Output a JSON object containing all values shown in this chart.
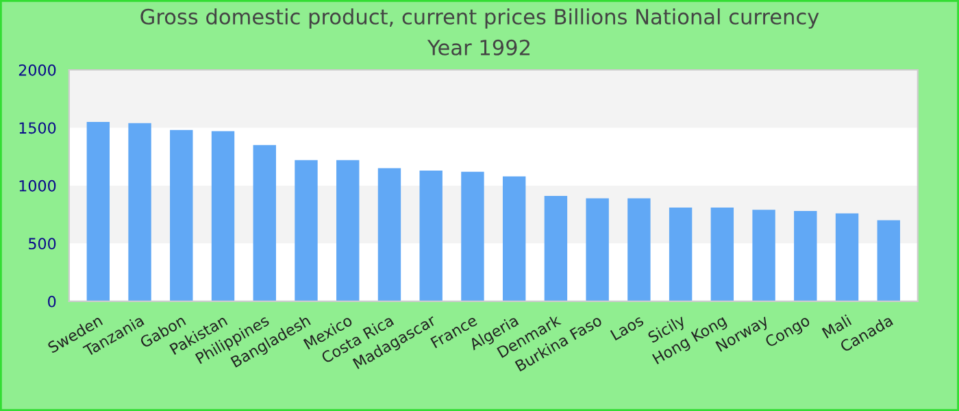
{
  "chart_data": {
    "type": "bar",
    "title": "Gross domestic product, current prices Billions National currency",
    "subtitle": "Year 1992",
    "categories": [
      "Sweden",
      "Tanzania",
      "Gabon",
      "Pakistan",
      "Philippines",
      "Bangladesh",
      "Mexico",
      "Costa Rica",
      "Madagascar",
      "France",
      "Algeria",
      "Denmark",
      "Burkina Faso",
      "Laos",
      "Sicily",
      "Hong Kong",
      "Norway",
      "Congo",
      "Mali",
      "Canada"
    ],
    "values": [
      1550,
      1540,
      1480,
      1470,
      1350,
      1220,
      1220,
      1150,
      1130,
      1120,
      1080,
      910,
      890,
      890,
      810,
      810,
      790,
      780,
      760,
      700
    ],
    "color": "#61a8f5",
    "ylim": [
      0,
      2000
    ],
    "yticks": [
      0,
      500,
      1000,
      1500,
      2000
    ],
    "bands": [
      {
        "axis": "y",
        "from": 500,
        "to": 1000,
        "color": "#f3f3f3"
      },
      {
        "axis": "y",
        "from": 1500,
        "to": 2000,
        "color": "#f3f3f3"
      }
    ]
  }
}
